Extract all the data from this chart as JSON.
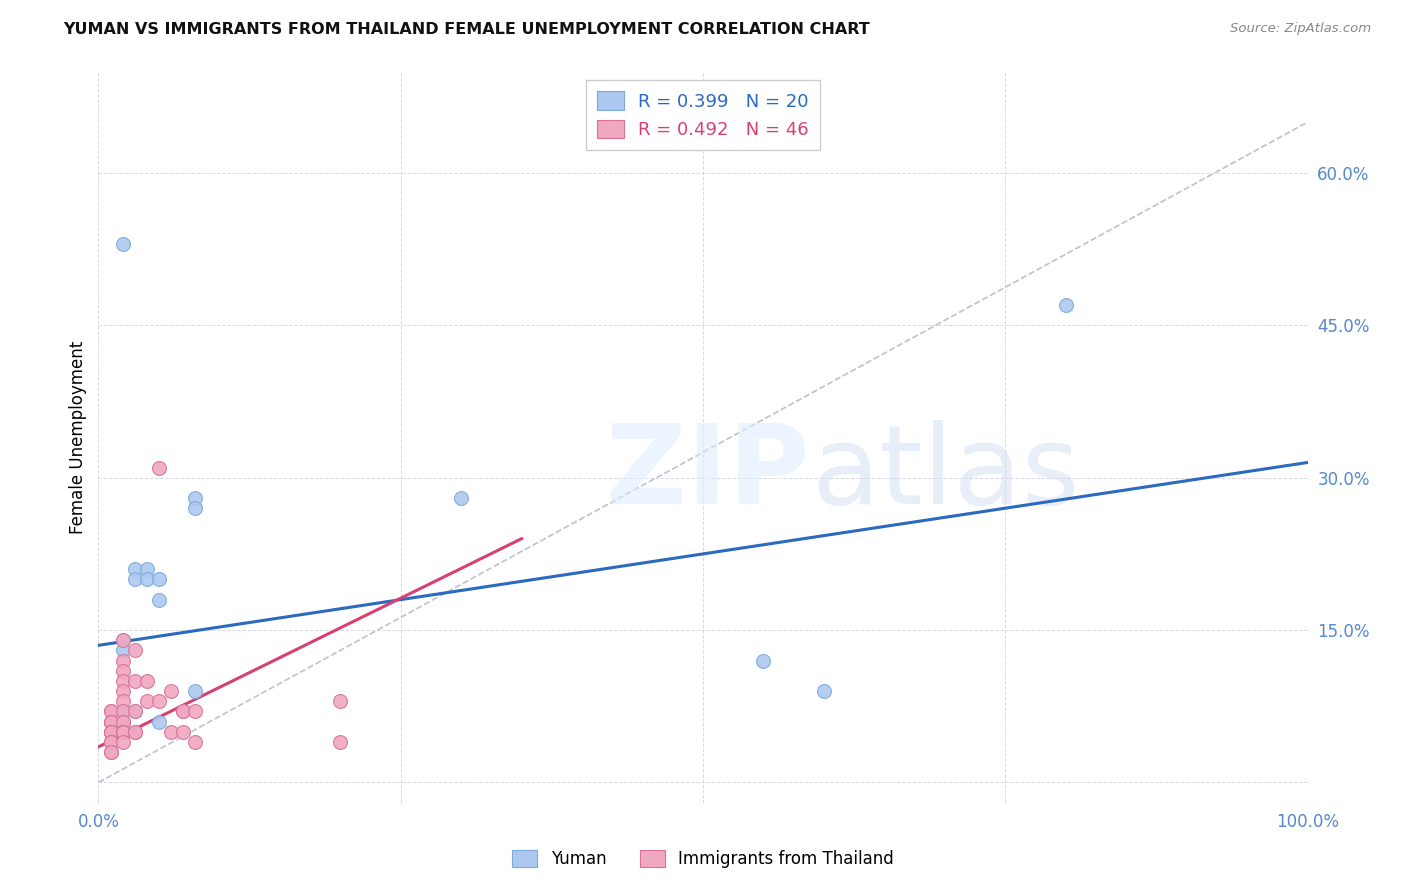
{
  "title": "YUMAN VS IMMIGRANTS FROM THAILAND FEMALE UNEMPLOYMENT CORRELATION CHART",
  "source": "Source: ZipAtlas.com",
  "ylabel": "Female Unemployment",
  "xlim": [
    0.0,
    1.0
  ],
  "ylim": [
    -0.02,
    0.7
  ],
  "yuman_color": "#adc8f0",
  "yuman_edge": "#7aaad8",
  "thailand_color": "#f0a8c0",
  "thailand_edge": "#d87098",
  "trend_blue": "#2a6abf",
  "trend_pink": "#d84070",
  "ref_line_color": "#c0c0d0",
  "legend_R1": "R = 0.399",
  "legend_N1": "N = 20",
  "legend_R2": "R = 0.492",
  "legend_N2": "N = 46",
  "yuman_x": [
    0.02,
    0.02,
    0.02,
    0.02,
    0.02,
    0.03,
    0.03,
    0.03,
    0.04,
    0.04,
    0.05,
    0.05,
    0.05,
    0.08,
    0.08,
    0.08,
    0.3,
    0.55,
    0.6,
    0.8
  ],
  "yuman_y": [
    0.53,
    0.14,
    0.13,
    0.07,
    0.06,
    0.21,
    0.2,
    0.07,
    0.21,
    0.2,
    0.2,
    0.18,
    0.06,
    0.28,
    0.27,
    0.09,
    0.28,
    0.12,
    0.09,
    0.47
  ],
  "thailand_x": [
    0.01,
    0.01,
    0.01,
    0.01,
    0.01,
    0.01,
    0.01,
    0.01,
    0.01,
    0.01,
    0.01,
    0.01,
    0.01,
    0.01,
    0.01,
    0.02,
    0.02,
    0.02,
    0.02,
    0.02,
    0.02,
    0.02,
    0.02,
    0.02,
    0.02,
    0.02,
    0.02,
    0.02,
    0.03,
    0.03,
    0.03,
    0.03,
    0.03,
    0.04,
    0.04,
    0.05,
    0.05,
    0.06,
    0.06,
    0.07,
    0.07,
    0.07,
    0.08,
    0.08,
    0.2,
    0.2
  ],
  "thailand_y": [
    0.07,
    0.07,
    0.06,
    0.06,
    0.06,
    0.05,
    0.05,
    0.05,
    0.05,
    0.04,
    0.04,
    0.04,
    0.04,
    0.03,
    0.03,
    0.14,
    0.12,
    0.11,
    0.1,
    0.09,
    0.08,
    0.07,
    0.06,
    0.06,
    0.05,
    0.05,
    0.05,
    0.04,
    0.13,
    0.1,
    0.07,
    0.05,
    0.05,
    0.1,
    0.08,
    0.31,
    0.08,
    0.09,
    0.05,
    0.07,
    0.07,
    0.05,
    0.07,
    0.04,
    0.08,
    0.04
  ],
  "yuman_trend_x": [
    0.0,
    1.0
  ],
  "yuman_trend_y": [
    0.135,
    0.315
  ],
  "thailand_trend_x": [
    0.0,
    0.35
  ],
  "thailand_trend_y": [
    0.035,
    0.24
  ],
  "ref_line_x": [
    0.0,
    1.0
  ],
  "ref_line_y": [
    0.0,
    0.65
  ]
}
